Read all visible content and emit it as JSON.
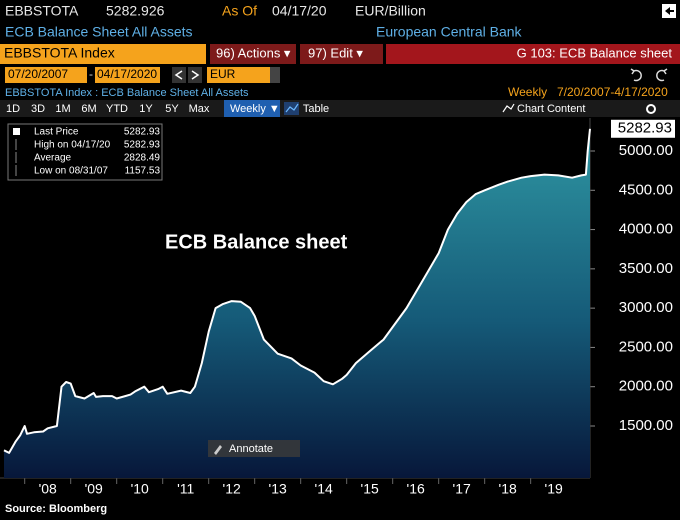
{
  "header": {
    "ticker": "EBBSTOTA",
    "price": "5282.926",
    "as_of_label": "As Of",
    "as_of_date": "04/17/20",
    "units": "EUR/Billion",
    "description": "ECB Balance Sheet All Assets",
    "issuer": "European Central Bank"
  },
  "toolbar": {
    "security": "EBBSTOTA Index",
    "actions": "96) Actions ▾",
    "edit": "97) Edit ▾",
    "chart_name": "G 103: ECB Balance sheet"
  },
  "dates": {
    "start": "07/20/2007",
    "separator": "-",
    "end": "04/17/2020",
    "currency": "EUR"
  },
  "subheader": {
    "left": "EBBSTOTA Index : ECB Balance Sheet All Assets",
    "frequency": "Weekly",
    "range": "7/20/2007-4/17/2020"
  },
  "tabs": [
    "1D",
    "3D",
    "1M",
    "6M",
    "YTD",
    "1Y",
    "5Y",
    "Max",
    "Weekly ▼",
    "Table"
  ],
  "chart_content": "Chart Content",
  "chart_data": {
    "type": "area",
    "title": "ECB Balance sheet",
    "x": [
      2007.55,
      2007.66,
      2007.8,
      2007.9,
      2008.0,
      2008.05,
      2008.2,
      2008.4,
      2008.5,
      2008.7,
      2008.8,
      2008.9,
      2009.0,
      2009.1,
      2009.3,
      2009.5,
      2009.55,
      2009.7,
      2009.9,
      2010.0,
      2010.3,
      2010.4,
      2010.6,
      2010.7,
      2010.9,
      2011.0,
      2011.1,
      2011.4,
      2011.6,
      2011.7,
      2011.85,
      2012.0,
      2012.15,
      2012.3,
      2012.5,
      2012.7,
      2012.9,
      2013.0,
      2013.2,
      2013.5,
      2013.8,
      2014.0,
      2014.3,
      2014.5,
      2014.7,
      2014.9,
      2015.0,
      2015.2,
      2015.5,
      2015.8,
      2016.0,
      2016.3,
      2016.6,
      2016.9,
      2017.0,
      2017.2,
      2017.4,
      2017.6,
      2017.8,
      2018.0,
      2018.3,
      2018.5,
      2018.8,
      2019.0,
      2019.3,
      2019.6,
      2019.9,
      2020.1,
      2020.2,
      2020.24,
      2020.29
    ],
    "series": [
      {
        "name": "Last Price",
        "color": "#ffffff",
        "values": [
          1190,
          1157.53,
          1300,
          1380,
          1500,
          1400,
          1420,
          1430,
          1470,
          1500,
          2000,
          2060,
          2040,
          1880,
          1850,
          1920,
          1870,
          1880,
          1880,
          1850,
          1900,
          1940,
          2000,
          1930,
          1970,
          2000,
          1910,
          1950,
          1920,
          2000,
          2300,
          2700,
          3000,
          3050,
          3090,
          3080,
          3000,
          2900,
          2600,
          2420,
          2360,
          2270,
          2180,
          2070,
          2030,
          2100,
          2150,
          2300,
          2450,
          2600,
          2760,
          3000,
          3300,
          3600,
          3700,
          4000,
          4200,
          4350,
          4450,
          4500,
          4570,
          4610,
          4660,
          4680,
          4700,
          4690,
          4660,
          4690,
          4700,
          5000,
          5282.93
        ]
      }
    ],
    "xlim": [
      2007.55,
      2020.29
    ],
    "xticks": [
      {
        "value": 2008,
        "label": "'08"
      },
      {
        "value": 2009,
        "label": "'09"
      },
      {
        "value": 2010,
        "label": "'10"
      },
      {
        "value": 2011,
        "label": "'11"
      },
      {
        "value": 2012,
        "label": "'12"
      },
      {
        "value": 2013,
        "label": "'13"
      },
      {
        "value": 2014,
        "label": "'14"
      },
      {
        "value": 2015,
        "label": "'15"
      },
      {
        "value": 2016,
        "label": "'16"
      },
      {
        "value": 2017,
        "label": "'17"
      },
      {
        "value": 2018,
        "label": "'18"
      },
      {
        "value": 2019,
        "label": "'19"
      }
    ],
    "ylim": [
      838,
      5420
    ],
    "yticks": [
      {
        "value": 1500,
        "label": "1500.00"
      },
      {
        "value": 2000,
        "label": "2000.00"
      },
      {
        "value": 2500,
        "label": "2500.00"
      },
      {
        "value": 3000,
        "label": "3000.00"
      },
      {
        "value": 3500,
        "label": "3500.00"
      },
      {
        "value": 4000,
        "label": "4000.00"
      },
      {
        "value": 4500,
        "label": "4500.00"
      },
      {
        "value": 5000,
        "label": "5000.00"
      }
    ],
    "legend_stats": [
      {
        "label": "High on 04/17/20",
        "value": 5282.93
      },
      {
        "label": "Average",
        "value": 2828.49
      },
      {
        "label": "Low on 08/31/07",
        "value": 1157.53
      }
    ]
  },
  "annotate_button": "Annotate",
  "source": "Source: Bloomberg"
}
